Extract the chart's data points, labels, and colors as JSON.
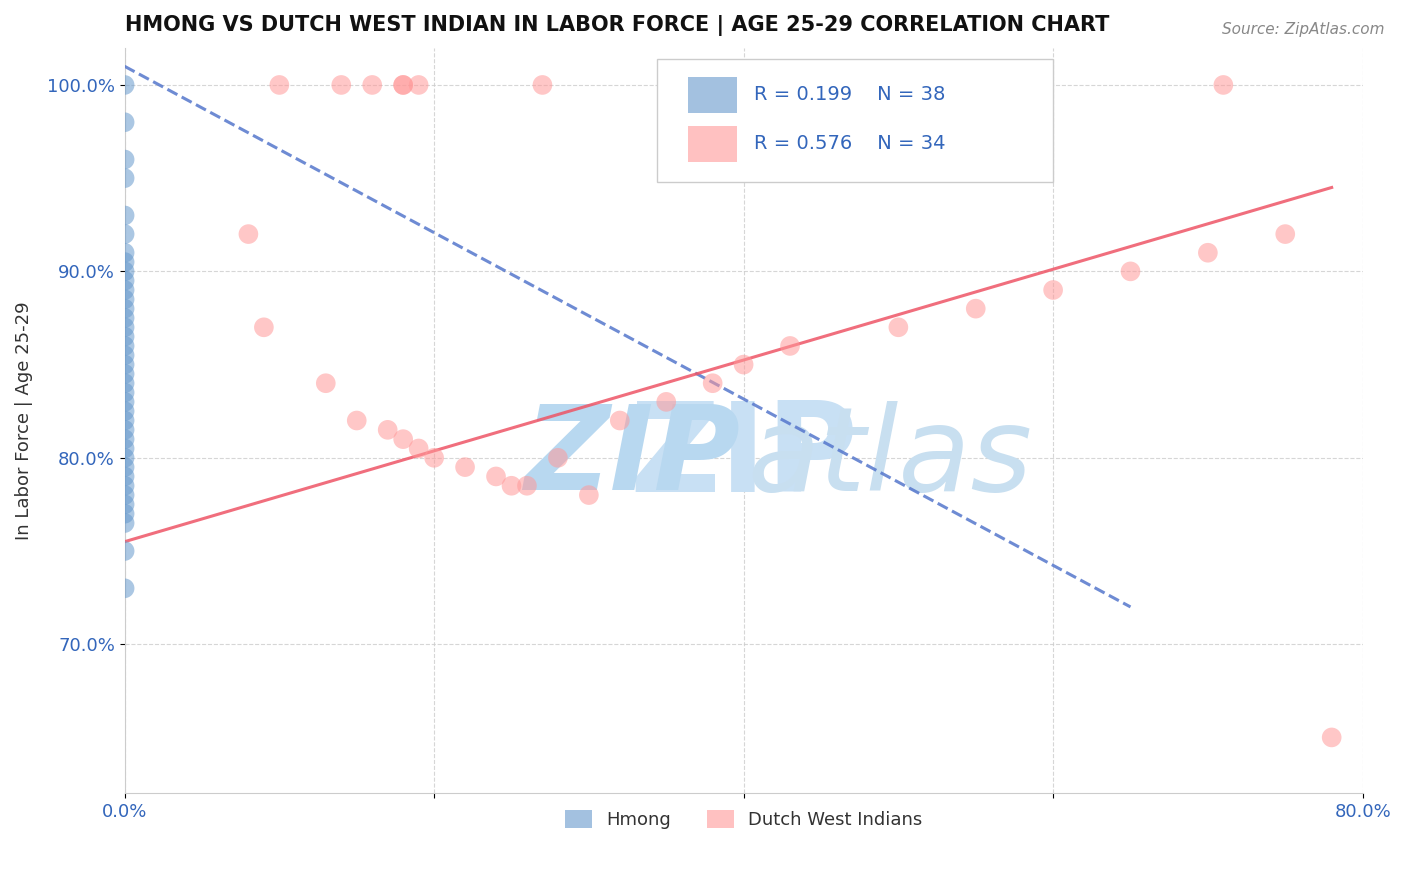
{
  "title": "HMONG VS DUTCH WEST INDIAN IN LABOR FORCE | AGE 25-29 CORRELATION CHART",
  "source": "Source: ZipAtlas.com",
  "ylabel": "In Labor Force | Age 25-29",
  "xlim": [
    0.0,
    0.8
  ],
  "ylim": [
    0.62,
    1.02
  ],
  "xtick_positions": [
    0.0,
    0.2,
    0.4,
    0.6,
    0.8
  ],
  "xtick_labels": [
    "0.0%",
    "",
    "",
    "",
    "80.0%"
  ],
  "ytick_positions": [
    0.7,
    0.8,
    0.9,
    1.0
  ],
  "ytick_labels": [
    "70.0%",
    "80.0%",
    "90.0%",
    "100.0%"
  ],
  "hmong_color": "#6699cc",
  "dwi_color": "#ff9999",
  "line_color_hmong": "#5577cc",
  "line_color_dwi": "#ee5566",
  "hmong_x": [
    0.0,
    0.0,
    0.0,
    0.0,
    0.0,
    0.0,
    0.0,
    0.0,
    0.0,
    0.0,
    0.0,
    0.0,
    0.0,
    0.0,
    0.0,
    0.0,
    0.0,
    0.0,
    0.0,
    0.0,
    0.0,
    0.0,
    0.0,
    0.0,
    0.0,
    0.0,
    0.0,
    0.0,
    0.0,
    0.0,
    0.0,
    0.0,
    0.0,
    0.0,
    0.0,
    0.0,
    0.0,
    0.0
  ],
  "hmong_y": [
    1.0,
    0.98,
    0.96,
    0.95,
    0.93,
    0.92,
    0.91,
    0.905,
    0.9,
    0.895,
    0.89,
    0.885,
    0.88,
    0.875,
    0.87,
    0.865,
    0.86,
    0.855,
    0.85,
    0.845,
    0.84,
    0.835,
    0.83,
    0.825,
    0.82,
    0.815,
    0.81,
    0.805,
    0.8,
    0.795,
    0.79,
    0.785,
    0.78,
    0.775,
    0.77,
    0.765,
    0.75,
    0.73
  ],
  "dwi_x": [
    0.08,
    0.09,
    0.1,
    0.13,
    0.14,
    0.15,
    0.16,
    0.17,
    0.18,
    0.18,
    0.18,
    0.19,
    0.19,
    0.2,
    0.22,
    0.24,
    0.25,
    0.26,
    0.27,
    0.28,
    0.3,
    0.32,
    0.35,
    0.38,
    0.4,
    0.43,
    0.5,
    0.55,
    0.6,
    0.65,
    0.7,
    0.71,
    0.75,
    0.78
  ],
  "dwi_y": [
    0.92,
    0.87,
    1.0,
    0.84,
    1.0,
    0.82,
    1.0,
    0.815,
    1.0,
    1.0,
    0.81,
    1.0,
    0.805,
    0.8,
    0.795,
    0.79,
    0.785,
    0.785,
    1.0,
    0.8,
    0.78,
    0.82,
    0.83,
    0.84,
    0.85,
    0.86,
    0.87,
    0.88,
    0.89,
    0.9,
    0.91,
    1.0,
    0.92,
    0.65
  ],
  "hmong_line_x": [
    0.0,
    0.65
  ],
  "hmong_line_y": [
    1.01,
    0.72
  ],
  "dwi_line_x": [
    0.0,
    0.78
  ],
  "dwi_line_y": [
    0.755,
    0.945
  ],
  "legend_r1": "R = 0.199",
  "legend_n1": "N = 38",
  "legend_r2": "R = 0.576",
  "legend_n2": "N = 34"
}
